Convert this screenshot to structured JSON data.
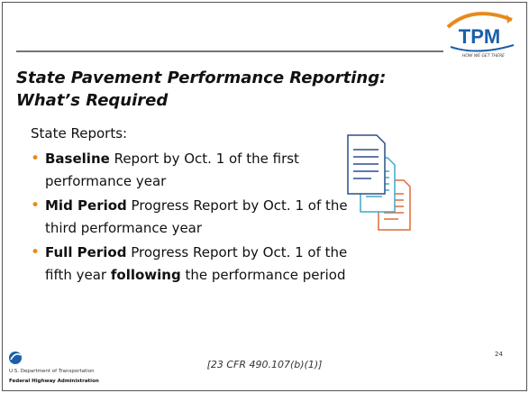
{
  "logo": {
    "text": "TPM",
    "tagline": "HOW WE GET THERE"
  },
  "title": {
    "line1": "State Pavement Performance Reporting:",
    "line2": "What’s Required"
  },
  "intro": "State Reports:",
  "bullets": [
    [
      {
        "text": "Baseline",
        "bold": true
      },
      {
        "text": " Report by Oct. 1 of the first performance year",
        "bold": false
      }
    ],
    [
      {
        "text": "Mid Period",
        "bold": true
      },
      {
        "text": " Progress Report by Oct. 1 of the third performance year",
        "bold": false
      }
    ],
    [
      {
        "text": "Full Period",
        "bold": true
      },
      {
        "text": " Progress Report by Oct. 1 of the fifth year ",
        "bold": false
      },
      {
        "text": "following",
        "bold": true
      },
      {
        "text": " the performance period",
        "bold": false
      }
    ]
  ],
  "footer": {
    "agency1": "U.S. Department of Transportation",
    "agency2": "Federal Highway Administration",
    "citation": "[23 CFR 490.107(b)(1)]",
    "page": "24"
  }
}
